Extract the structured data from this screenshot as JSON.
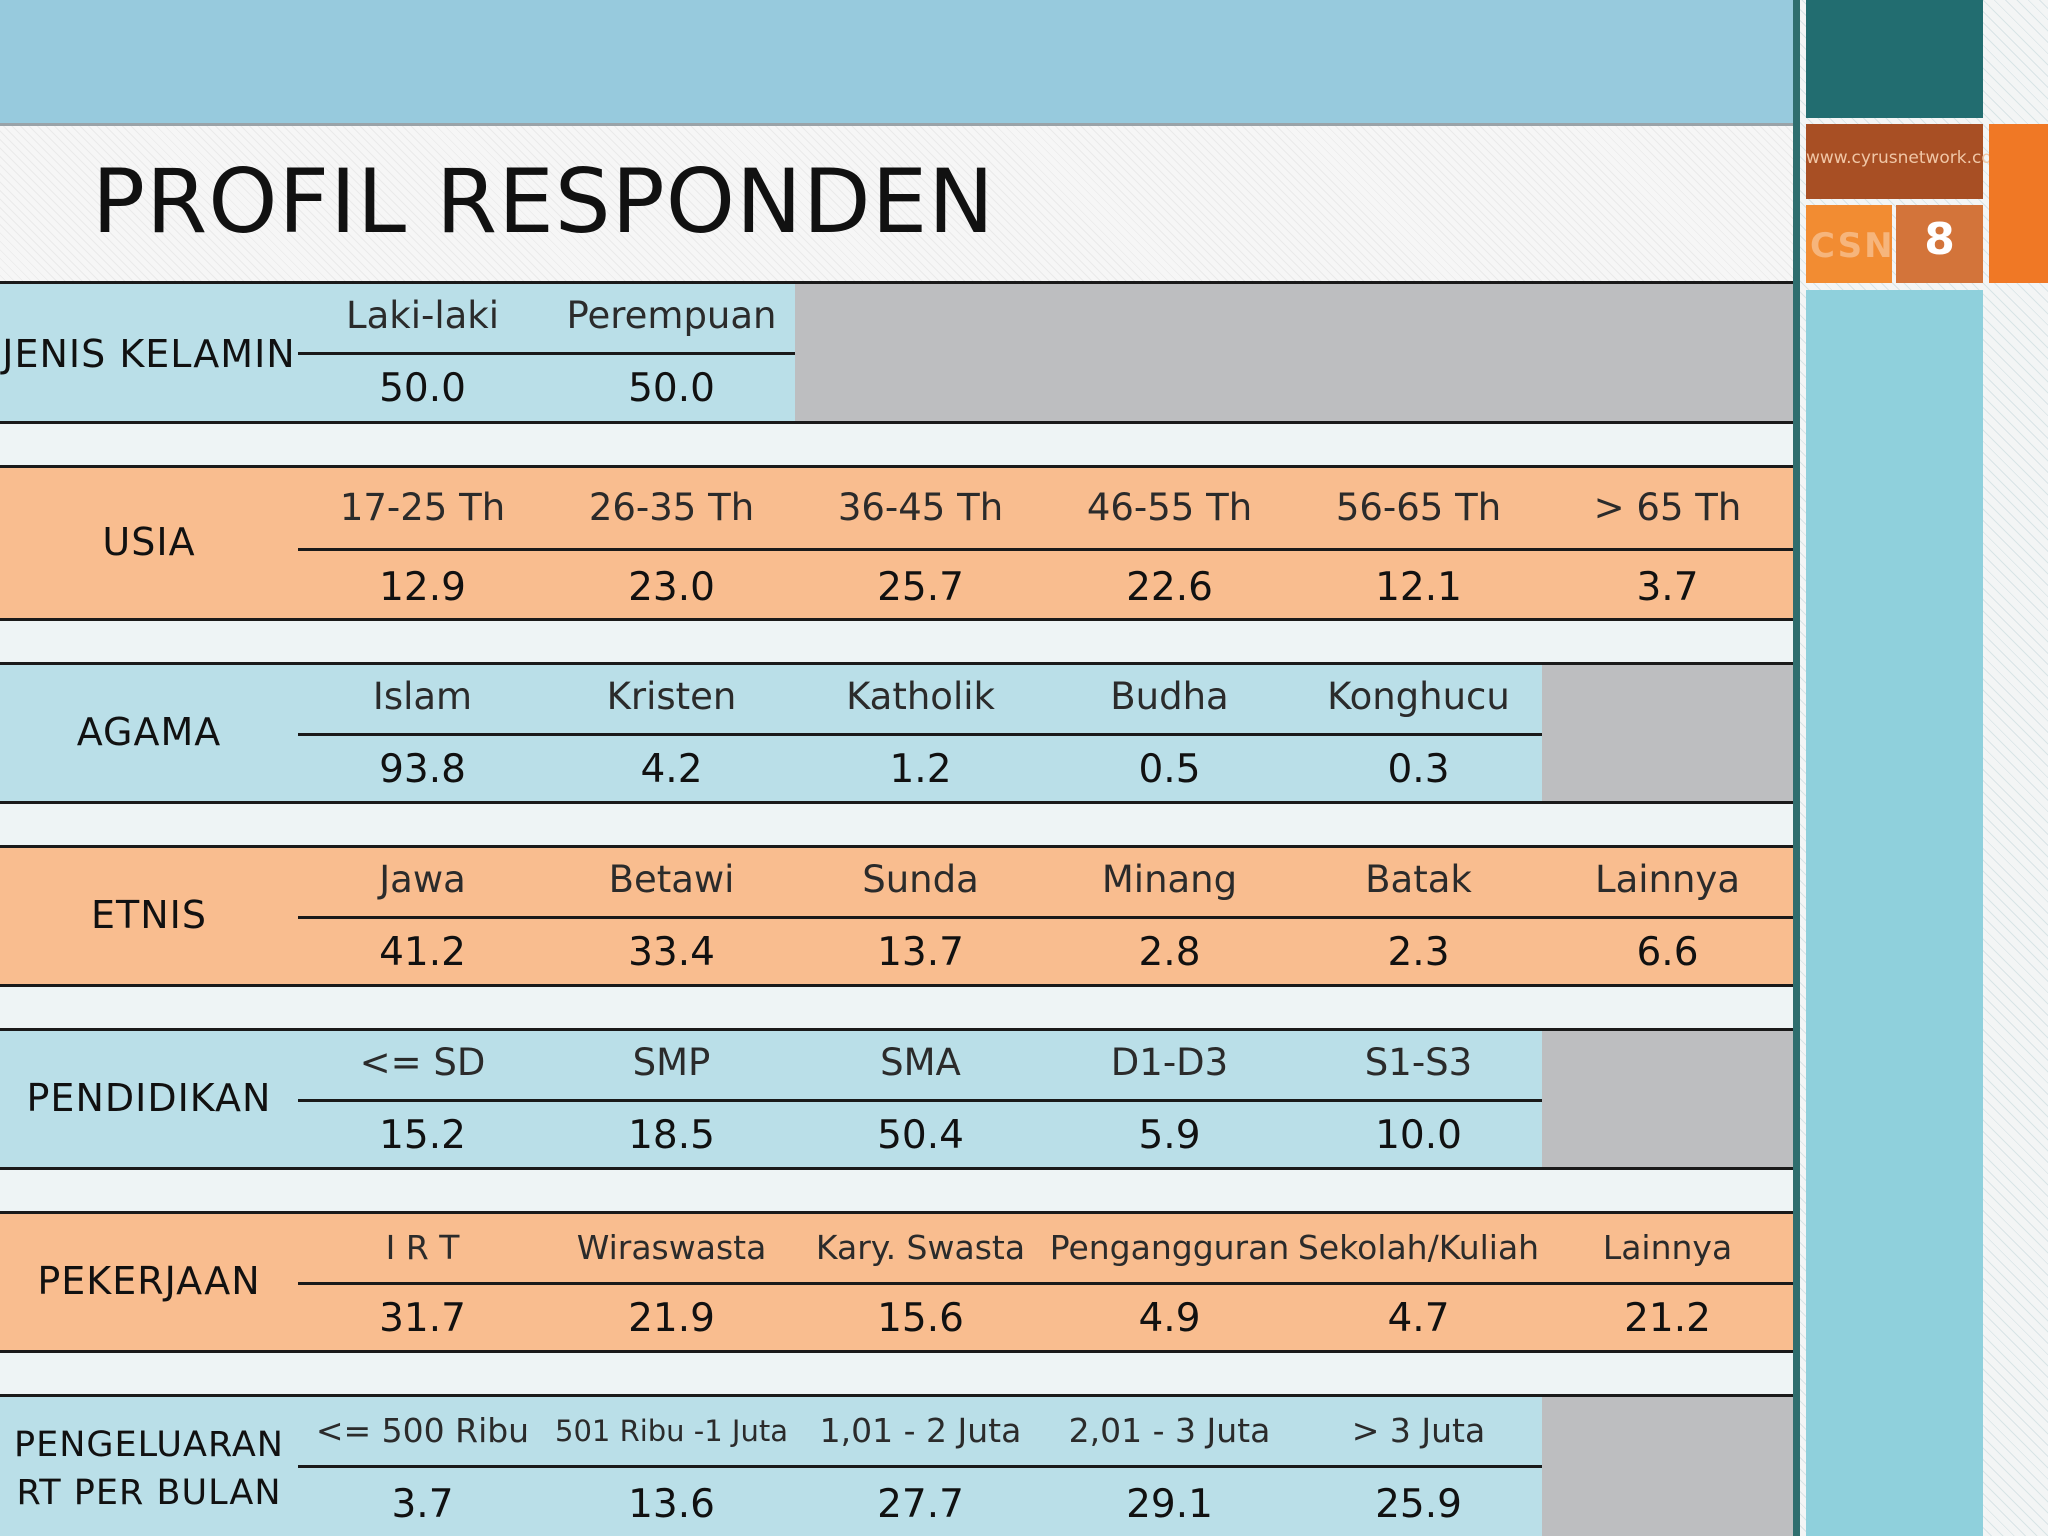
{
  "header": {
    "title": "PROFIL RESPONDEN"
  },
  "sidebar": {
    "url": "www.cyrusnetwork.co",
    "logo_text": "CSN",
    "page_number": "8"
  },
  "rows": [
    {
      "label": "JENIS KELAMIN",
      "headers": [
        "Laki-laki",
        "Perempuan"
      ],
      "values": [
        "50.0",
        "50.0"
      ]
    },
    {
      "label": "USIA",
      "headers": [
        "17-25 Th",
        "26-35 Th",
        "36-45 Th",
        "46-55 Th",
        "56-65 Th",
        "> 65 Th"
      ],
      "values": [
        "12.9",
        "23.0",
        "25.7",
        "22.6",
        "12.1",
        "3.7"
      ]
    },
    {
      "label": "AGAMA",
      "headers": [
        "Islam",
        "Kristen",
        "Katholik",
        "Budha",
        "Konghucu"
      ],
      "values": [
        "93.8",
        "4.2",
        "1.2",
        "0.5",
        "0.3"
      ]
    },
    {
      "label": "ETNIS",
      "headers": [
        "Jawa",
        "Betawi",
        "Sunda",
        "Minang",
        "Batak",
        "Lainnya"
      ],
      "values": [
        "41.2",
        "33.4",
        "13.7",
        "2.8",
        "2.3",
        "6.6"
      ]
    },
    {
      "label": "PENDIDIKAN",
      "headers": [
        "<= SD",
        "SMP",
        "SMA",
        "D1-D3",
        "S1-S3"
      ],
      "values": [
        "15.2",
        "18.5",
        "50.4",
        "5.9",
        "10.0"
      ]
    },
    {
      "label": "PEKERJAAN",
      "headers": [
        "I R T",
        "Wiraswasta",
        "Kary. Swasta",
        "Pengangguran",
        "Sekolah/Kuliah",
        "Lainnya"
      ],
      "values": [
        "31.7",
        "21.9",
        "15.6",
        "4.9",
        "4.7",
        "21.2"
      ]
    },
    {
      "label_line1": "PENGELUARAN",
      "label_line2": "RT PER BULAN",
      "headers": [
        "<=  500 Ribu",
        "501 Ribu -1 Juta",
        "1,01 - 2 Juta",
        "2,01 - 3 Juta",
        "> 3 Juta"
      ],
      "values": [
        "3.7",
        "13.6",
        "27.7",
        "29.1",
        "25.9"
      ]
    }
  ]
}
